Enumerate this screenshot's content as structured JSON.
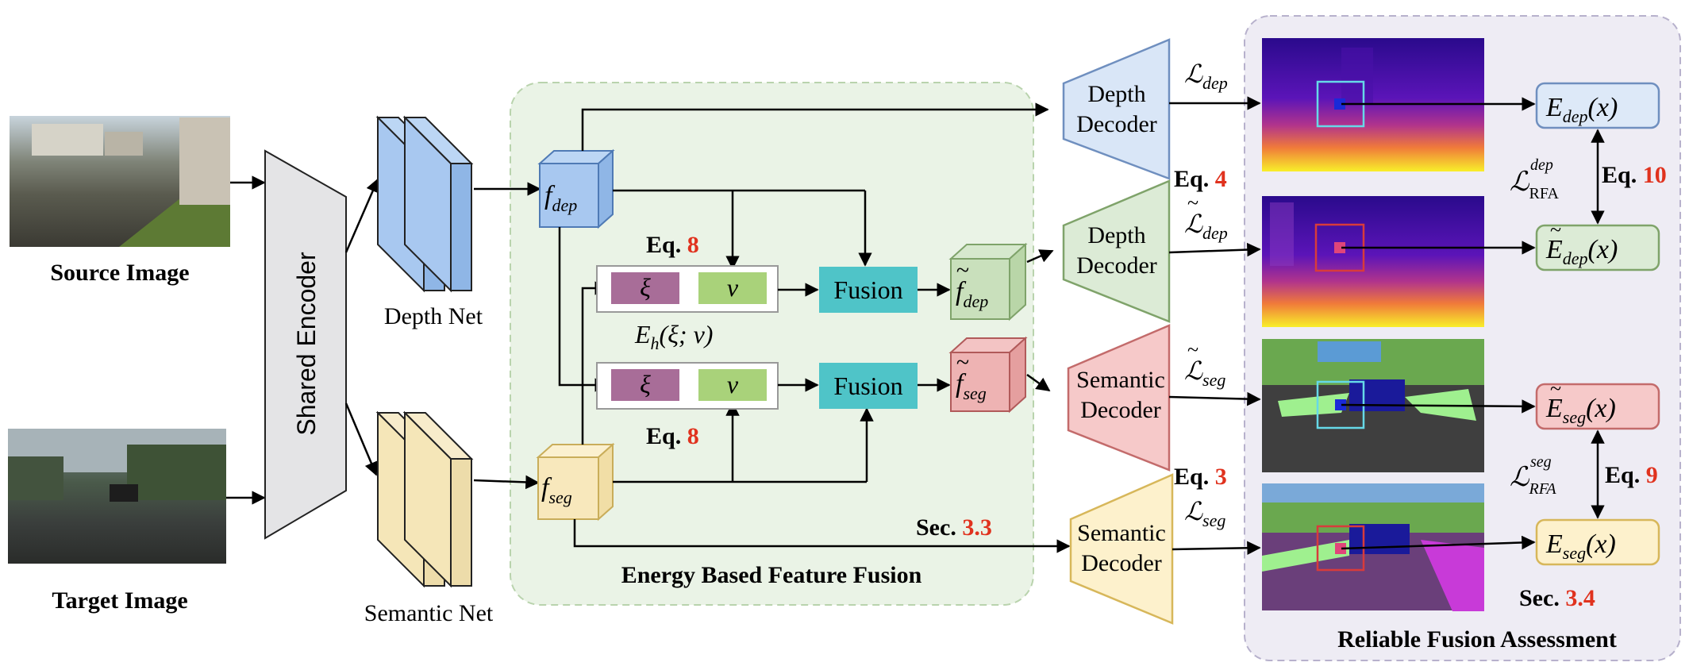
{
  "labels": {
    "source_image": "Source Image",
    "target_image": "Target Image",
    "shared_encoder": "Shared Encoder",
    "depth_net": "Depth Net",
    "semantic_net": "Semantic Net",
    "energy_fusion_title": "Energy Based Feature Fusion",
    "rfa_title": "Reliable Fusion Assessment",
    "fusion_top": "Fusion",
    "fusion_bottom": "Fusion",
    "xi_top": "ξ",
    "nu_top": "ν",
    "xi_bottom": "ξ",
    "nu_bottom": "ν",
    "energy_fn": "E",
    "energy_fn_sub": "h",
    "energy_fn_args": "(ξ; ν)",
    "feat_dep_base": "f",
    "feat_dep_sub": "dep",
    "feat_seg_base": "f",
    "feat_seg_sub": "seg",
    "feat_dep_tilde_base": "f",
    "feat_dep_tilde_sub": "dep",
    "feat_seg_tilde_base": "f",
    "feat_seg_tilde_sub": "seg",
    "tilde": "~",
    "dec1_line1": "Depth",
    "dec1_line2": "Decoder",
    "dec2_line1": "Depth",
    "dec2_line2": "Decoder",
    "dec3_line1": "Semantic",
    "dec3_line2": "Decoder",
    "dec4_line1": "Semantic",
    "dec4_line2": "Decoder",
    "loss_script": "ℒ",
    "loss_dep_sub": "dep",
    "loss_dep_tilde_sub": "dep",
    "loss_seg_tilde_sub": "seg",
    "loss_seg_sub": "seg",
    "rfa_dep_sub": "RFA",
    "rfa_dep_sup": "dep",
    "rfa_seg_sub": "RFA",
    "rfa_seg_sup": "seg",
    "e_base": "E",
    "e_dep_sub": "dep",
    "e_seg_sub": "seg",
    "e_x": "(x)"
  },
  "refs": {
    "eq8_top_prefix": "Eq.",
    "eq8_top_num": "8",
    "eq8_bottom_prefix": "Eq.",
    "eq8_bottom_num": "8",
    "eq4_prefix": "Eq.",
    "eq4_num": "4",
    "eq3_prefix": "Eq.",
    "eq3_num": "3",
    "eq10_prefix": "Eq.",
    "eq10_num": "10",
    "eq9_prefix": "Eq.",
    "eq9_num": "9",
    "sec33_prefix": "Sec.",
    "sec33_num": "3.3",
    "sec34_prefix": "Sec.",
    "sec34_num": "3.4"
  },
  "colors": {
    "depth_blue": "#a8c8f0",
    "semantic_yellow": "#f5e6b8",
    "decoder_green": "#dcebd6",
    "decoder_red": "#f6c9c9",
    "decoder_yellow": "#fdf1cc",
    "fusion_teal": "#4fc4c8",
    "xi_purple": "#a86d98",
    "nu_green": "#a9d27a",
    "fusion_panel": "#eaf3e6",
    "rfa_panel": "#eeecf4",
    "ref_red": "#e0321e"
  }
}
